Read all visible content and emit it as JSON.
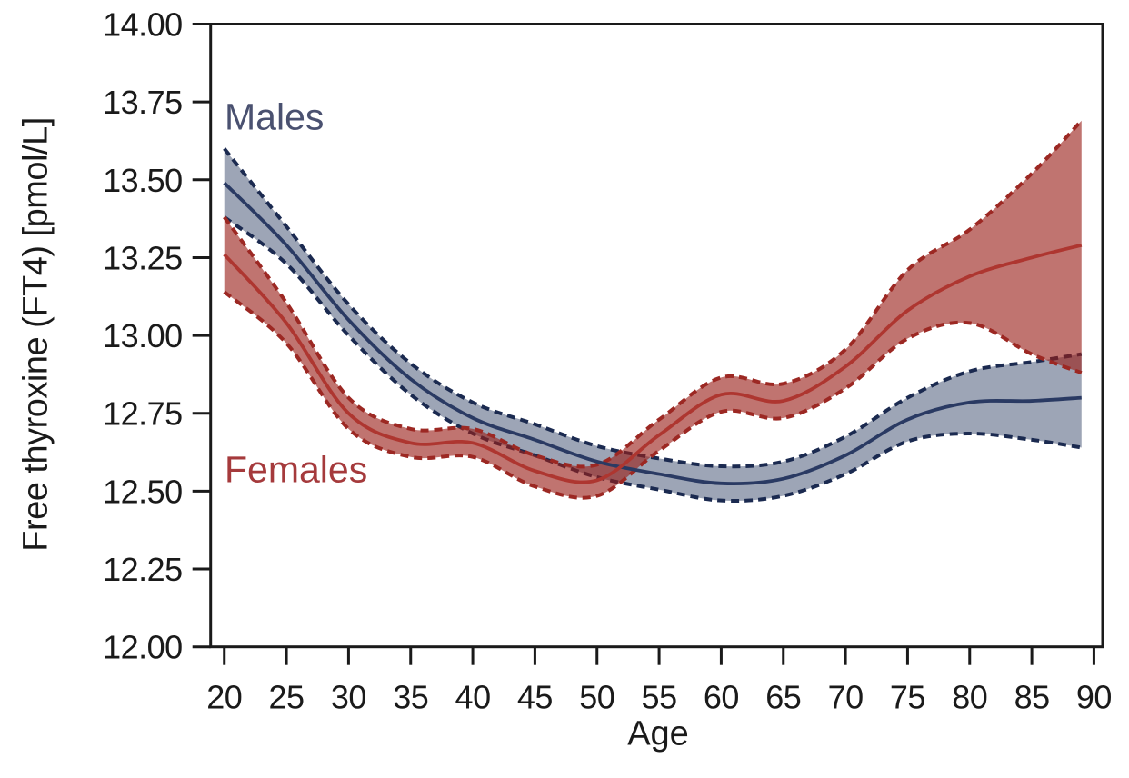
{
  "chart_data": {
    "type": "line",
    "title": "",
    "xlabel": "Age",
    "ylabel": "Free thyroxine (FT4) [pmol/L]",
    "xlim": [
      18.9,
      90.7
    ],
    "ylim": [
      12.0,
      14.0
    ],
    "xticks": [
      20,
      25,
      30,
      35,
      40,
      45,
      50,
      55,
      60,
      65,
      70,
      75,
      80,
      85,
      90
    ],
    "yticks": [
      12.0,
      12.25,
      12.5,
      12.75,
      13.0,
      13.25,
      13.5,
      13.75,
      14.0
    ],
    "grid": false,
    "legend_position": "inline-labels",
    "x": [
      20,
      25,
      30,
      35,
      40,
      45,
      50,
      55,
      60,
      65,
      70,
      75,
      80,
      85,
      89
    ],
    "series": [
      {
        "name": "Males",
        "mean": [
          13.49,
          13.29,
          13.05,
          12.86,
          12.735,
          12.665,
          12.595,
          12.555,
          12.525,
          12.54,
          12.615,
          12.73,
          12.785,
          12.79,
          12.8
        ],
        "upper": [
          13.6,
          13.35,
          13.1,
          12.91,
          12.785,
          12.715,
          12.645,
          12.605,
          12.58,
          12.595,
          12.675,
          12.8,
          12.885,
          12.915,
          12.94
        ],
        "lower": [
          13.38,
          13.23,
          13.0,
          12.81,
          12.685,
          12.615,
          12.545,
          12.505,
          12.47,
          12.485,
          12.555,
          12.66,
          12.685,
          12.665,
          12.64
        ],
        "line_color": "#2a3a63",
        "dash_color": "#1b2a50",
        "band_fill": "rgba(37,55,94,0.45)",
        "label_color": "#4a5170"
      },
      {
        "name": "Females",
        "mean": [
          13.26,
          13.04,
          12.75,
          12.655,
          12.655,
          12.565,
          12.535,
          12.68,
          12.81,
          12.79,
          12.9,
          13.08,
          13.19,
          13.25,
          13.29
        ],
        "upper": [
          13.38,
          13.105,
          12.8,
          12.7,
          12.7,
          12.615,
          12.585,
          12.73,
          12.865,
          12.845,
          12.955,
          13.21,
          13.34,
          13.52,
          13.69
        ],
        "lower": [
          13.14,
          12.975,
          12.7,
          12.61,
          12.61,
          12.515,
          12.485,
          12.63,
          12.755,
          12.735,
          12.83,
          12.99,
          13.04,
          12.94,
          12.88
        ],
        "line_color": "#ae3630",
        "dash_color": "#9c2823",
        "band_fill": "rgba(153,30,25,0.62)",
        "label_color": "#a53a3c"
      }
    ],
    "axis_color": "#1a1a1a"
  }
}
